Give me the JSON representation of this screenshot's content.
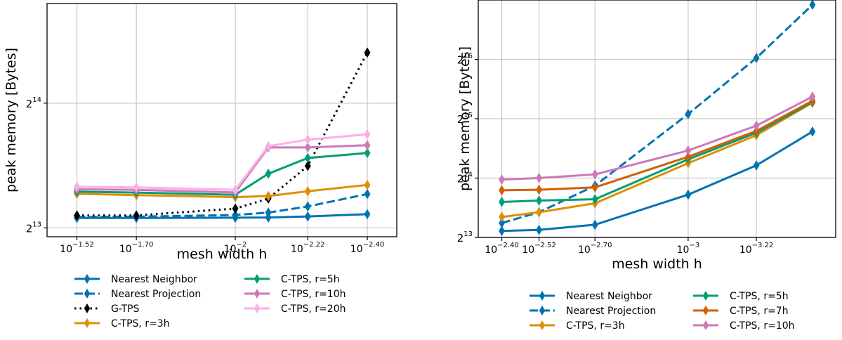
{
  "chart_data": [
    {
      "type": "line",
      "xlabel": "mesh width h",
      "ylabel": "peak memory [Bytes]",
      "x_scale": "log10",
      "y_scale": "log2",
      "x_ticks": [
        {
          "value": 0.0302,
          "base": "10",
          "exp": "−1.52"
        },
        {
          "value": 0.01995,
          "base": "10",
          "exp": "−1.70"
        },
        {
          "value": 0.01,
          "base": "10",
          "exp": "−2"
        },
        {
          "value": 0.00603,
          "base": "10",
          "exp": "−2.22"
        },
        {
          "value": 0.00398,
          "base": "10",
          "exp": "−2.40"
        }
      ],
      "y_ticks": [
        {
          "value": 8192,
          "base": "2",
          "exp": "13"
        },
        {
          "value": 16384,
          "base": "2",
          "exp": "14"
        }
      ],
      "grid": true,
      "legend": "below",
      "x": [
        0.0302,
        0.01995,
        0.01,
        0.00794,
        0.00603,
        0.00398
      ],
      "series": [
        {
          "name": "Nearest Neighbor",
          "color": "#0173b2",
          "dash": "solid",
          "marker": "thin_diamond",
          "values": [
            8660,
            8660,
            8670,
            8680,
            8730,
            8840
          ]
        },
        {
          "name": "Nearest Projection",
          "color": "#0173b2",
          "dash": "dashed",
          "marker": "thin_diamond",
          "values": [
            8700,
            8720,
            8800,
            8920,
            9230,
            9890
          ]
        },
        {
          "name": "G-TPS",
          "color": "#000000",
          "dash": "dotted",
          "marker": "thin_diamond",
          "values": [
            8780,
            8780,
            9120,
            9640,
            11560,
            21700
          ]
        },
        {
          "name": "C-TPS, r=3h",
          "color": "#de8f05",
          "dash": "solid",
          "marker": "thin_diamond",
          "values": [
            9900,
            9830,
            9720,
            9780,
            10040,
            10400
          ]
        },
        {
          "name": "C-TPS, r=5h",
          "color": "#029e73",
          "dash": "solid",
          "marker": "thin_diamond",
          "values": [
            10020,
            9970,
            9850,
            11070,
            12080,
            12420
          ]
        },
        {
          "name": "C-TPS, r=10h",
          "color": "#cc78bc",
          "dash": "solid",
          "marker": "thin_diamond",
          "values": [
            10150,
            10120,
            9980,
            12810,
            12810,
            12970
          ]
        },
        {
          "name": "C-TPS, r=20h",
          "color": "#fbafe4",
          "dash": "solid",
          "marker": "thin_diamond",
          "values": [
            10300,
            10260,
            10120,
            12900,
            13380,
            13780
          ]
        }
      ]
    },
    {
      "type": "line",
      "xlabel": "mesh width h",
      "ylabel": "peak memory [Bytes]",
      "x_scale": "log10",
      "y_scale": "log2",
      "x_ticks": [
        {
          "value": 0.00398,
          "base": "10",
          "exp": "−2.40"
        },
        {
          "value": 0.00302,
          "base": "10",
          "exp": "−2.52"
        },
        {
          "value": 0.001995,
          "base": "10",
          "exp": "−2.70"
        },
        {
          "value": 0.001,
          "base": "10",
          "exp": "−3"
        },
        {
          "value": 0.000603,
          "base": "10",
          "exp": "−3.22"
        }
      ],
      "y_ticks": [
        {
          "value": 8192,
          "base": "2",
          "exp": "13"
        },
        {
          "value": 16384,
          "base": "2",
          "exp": "14"
        },
        {
          "value": 32768,
          "base": "2",
          "exp": "15"
        },
        {
          "value": 65536,
          "base": "2",
          "exp": "16"
        }
      ],
      "grid": true,
      "legend": "below",
      "x": [
        0.00398,
        0.00302,
        0.001995,
        0.001,
        0.000603,
        0.000398
      ],
      "series": [
        {
          "name": "Nearest Neighbor",
          "color": "#0173b2",
          "dash": "solid",
          "marker": "thin_diamond",
          "values": [
            8840,
            8940,
            9500,
            13500,
            19000,
            28200
          ]
        },
        {
          "name": "Nearest Projection",
          "color": "#0173b2",
          "dash": "dashed",
          "marker": "thin_diamond",
          "values": [
            9700,
            11000,
            15000,
            34600,
            66600,
            124000
          ]
        },
        {
          "name": "C-TPS, r=3h",
          "color": "#de8f05",
          "dash": "solid",
          "marker": "thin_diamond",
          "values": [
            10400,
            11000,
            12200,
            19500,
            27000,
            39500
          ]
        },
        {
          "name": "C-TPS, r=5h",
          "color": "#029e73",
          "dash": "solid",
          "marker": "thin_diamond",
          "values": [
            12400,
            12600,
            12800,
            20400,
            27800,
            39800
          ]
        },
        {
          "name": "C-TPS, r=7h",
          "color": "#d55e00",
          "dash": "solid",
          "marker": "thin_diamond",
          "values": [
            14200,
            14300,
            14700,
            21000,
            28400,
            40400
          ]
        },
        {
          "name": "C-TPS, r=10h",
          "color": "#cc78bc",
          "dash": "solid",
          "marker": "thin_diamond",
          "values": [
            16100,
            16400,
            17100,
            22600,
            30200,
            42400
          ]
        }
      ]
    }
  ]
}
